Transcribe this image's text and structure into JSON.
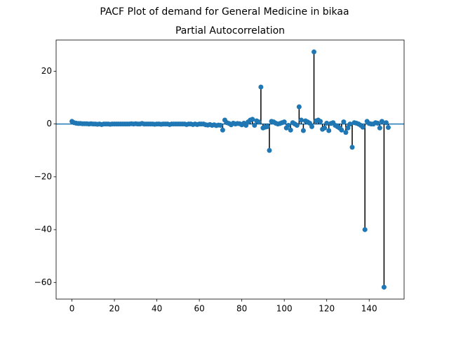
{
  "chart_data": {
    "type": "stem",
    "suptitle": "PACF Plot of demand for General Medicine in bikaa",
    "title": "Partial Autocorrelation",
    "x": [
      0,
      1,
      2,
      3,
      4,
      5,
      6,
      7,
      8,
      9,
      10,
      11,
      12,
      13,
      14,
      15,
      16,
      17,
      18,
      19,
      20,
      21,
      22,
      23,
      24,
      25,
      26,
      27,
      28,
      29,
      30,
      31,
      32,
      33,
      34,
      35,
      36,
      37,
      38,
      39,
      40,
      41,
      42,
      43,
      44,
      45,
      46,
      47,
      48,
      49,
      50,
      51,
      52,
      53,
      54,
      55,
      56,
      57,
      58,
      59,
      60,
      61,
      62,
      63,
      64,
      65,
      66,
      67,
      68,
      69,
      70,
      71,
      72,
      73,
      74,
      75,
      76,
      77,
      78,
      79,
      80,
      81,
      82,
      83,
      84,
      85,
      86,
      87,
      88,
      89,
      90,
      91,
      92,
      93,
      94,
      95,
      96,
      97,
      98,
      99,
      100,
      101,
      102,
      103,
      104,
      105,
      106,
      107,
      108,
      109,
      110,
      111,
      112,
      113,
      114,
      115,
      116,
      117,
      118,
      119,
      120,
      121,
      122,
      123,
      124,
      125,
      126,
      127,
      128,
      129,
      130,
      131,
      132,
      133,
      134,
      135,
      136,
      137,
      138,
      139,
      140,
      141,
      142,
      143,
      144,
      145,
      146,
      147,
      148,
      149
    ],
    "values": [
      1,
      0.5,
      0.3,
      0.2,
      0.2,
      0.1,
      0.1,
      0.1,
      0,
      0.1,
      0,
      0,
      -0.1,
      0,
      -0.2,
      0,
      0,
      0,
      -0.1,
      0,
      0,
      0,
      0,
      0,
      0,
      0,
      0,
      0,
      0.1,
      0,
      0.1,
      0,
      0,
      0.2,
      0,
      0,
      0,
      0,
      0,
      -0.1,
      0,
      0,
      -0.1,
      0,
      0,
      0,
      -0.2,
      0,
      0,
      0,
      0,
      0,
      0,
      0,
      -0.2,
      0,
      0,
      -0.2,
      0,
      -0.2,
      0,
      0,
      0,
      -0.3,
      -0.4,
      -0.2,
      -0.5,
      -0.3,
      -0.6,
      -0.4,
      -0.5,
      -2.3,
      1.5,
      0.5,
      0.2,
      -0.3,
      0.3,
      0,
      0.2,
      0.1,
      -0.3,
      0.3,
      -0.5,
      0.8,
      1.5,
      1.8,
      -0.5,
      1.2,
      0.8,
      14,
      -1.5,
      -1.2,
      -1,
      -10,
      1,
      0.8,
      0.3,
      0,
      0.2,
      0.5,
      0.8,
      -1.5,
      -0.5,
      -2.3,
      0.5,
      0,
      -0.5,
      6.5,
      1.5,
      -2.5,
      1.2,
      0.8,
      0.3,
      -1,
      27.3,
      1.2,
      1.5,
      1,
      -2,
      -1.5,
      0.3,
      -2.5,
      0.2,
      0.5,
      -0.5,
      -1,
      -1.5,
      -2.3,
      0.8,
      -3.2,
      -1.5,
      0,
      -8.8,
      0.5,
      0.3,
      0,
      -0.5,
      -1.2,
      -40,
      1,
      0.2,
      0,
      0,
      0.5,
      0.3,
      -1.5,
      1,
      -61.8,
      0.5,
      -1.3
    ],
    "color": "#1f77b4",
    "stem_color": "#000000",
    "xlim": [
      -7.45,
      156.45
    ],
    "xticks": [
      0,
      20,
      40,
      60,
      80,
      100,
      120,
      140
    ],
    "ylim": [
      -66.3,
      31.8
    ],
    "yticks": [
      {
        "value": -60,
        "label": "−60"
      },
      {
        "value": -40,
        "label": "−40"
      },
      {
        "value": -20,
        "label": "−20"
      },
      0,
      20
    ]
  }
}
